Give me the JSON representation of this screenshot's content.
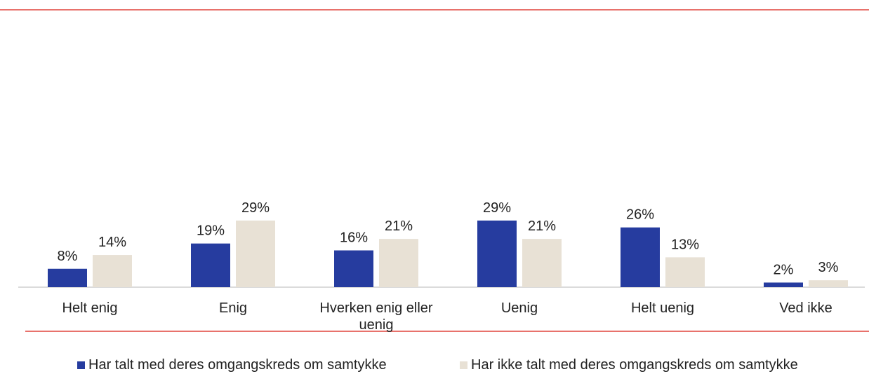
{
  "chart_data": {
    "type": "bar",
    "categories": [
      "Helt enig",
      "Enig",
      "Hverken enig eller uenig",
      "Uenig",
      "Helt uenig",
      "Ved ikke"
    ],
    "series": [
      {
        "name": "Har talt med deres omgangskreds om samtykke",
        "color": "#263c9f",
        "values": [
          8,
          19,
          16,
          29,
          26,
          2
        ],
        "value_labels": [
          "8%",
          "19%",
          "16%",
          "29%",
          "26%",
          "2%"
        ]
      },
      {
        "name": "Har ikke talt med deres omgangskreds om samtykke",
        "color": "#e8e1d5",
        "values": [
          14,
          29,
          21,
          21,
          13,
          3
        ],
        "value_labels": [
          "14%",
          "29%",
          "21%",
          "21%",
          "13%",
          "3%"
        ]
      }
    ],
    "legend": "bottom"
  }
}
